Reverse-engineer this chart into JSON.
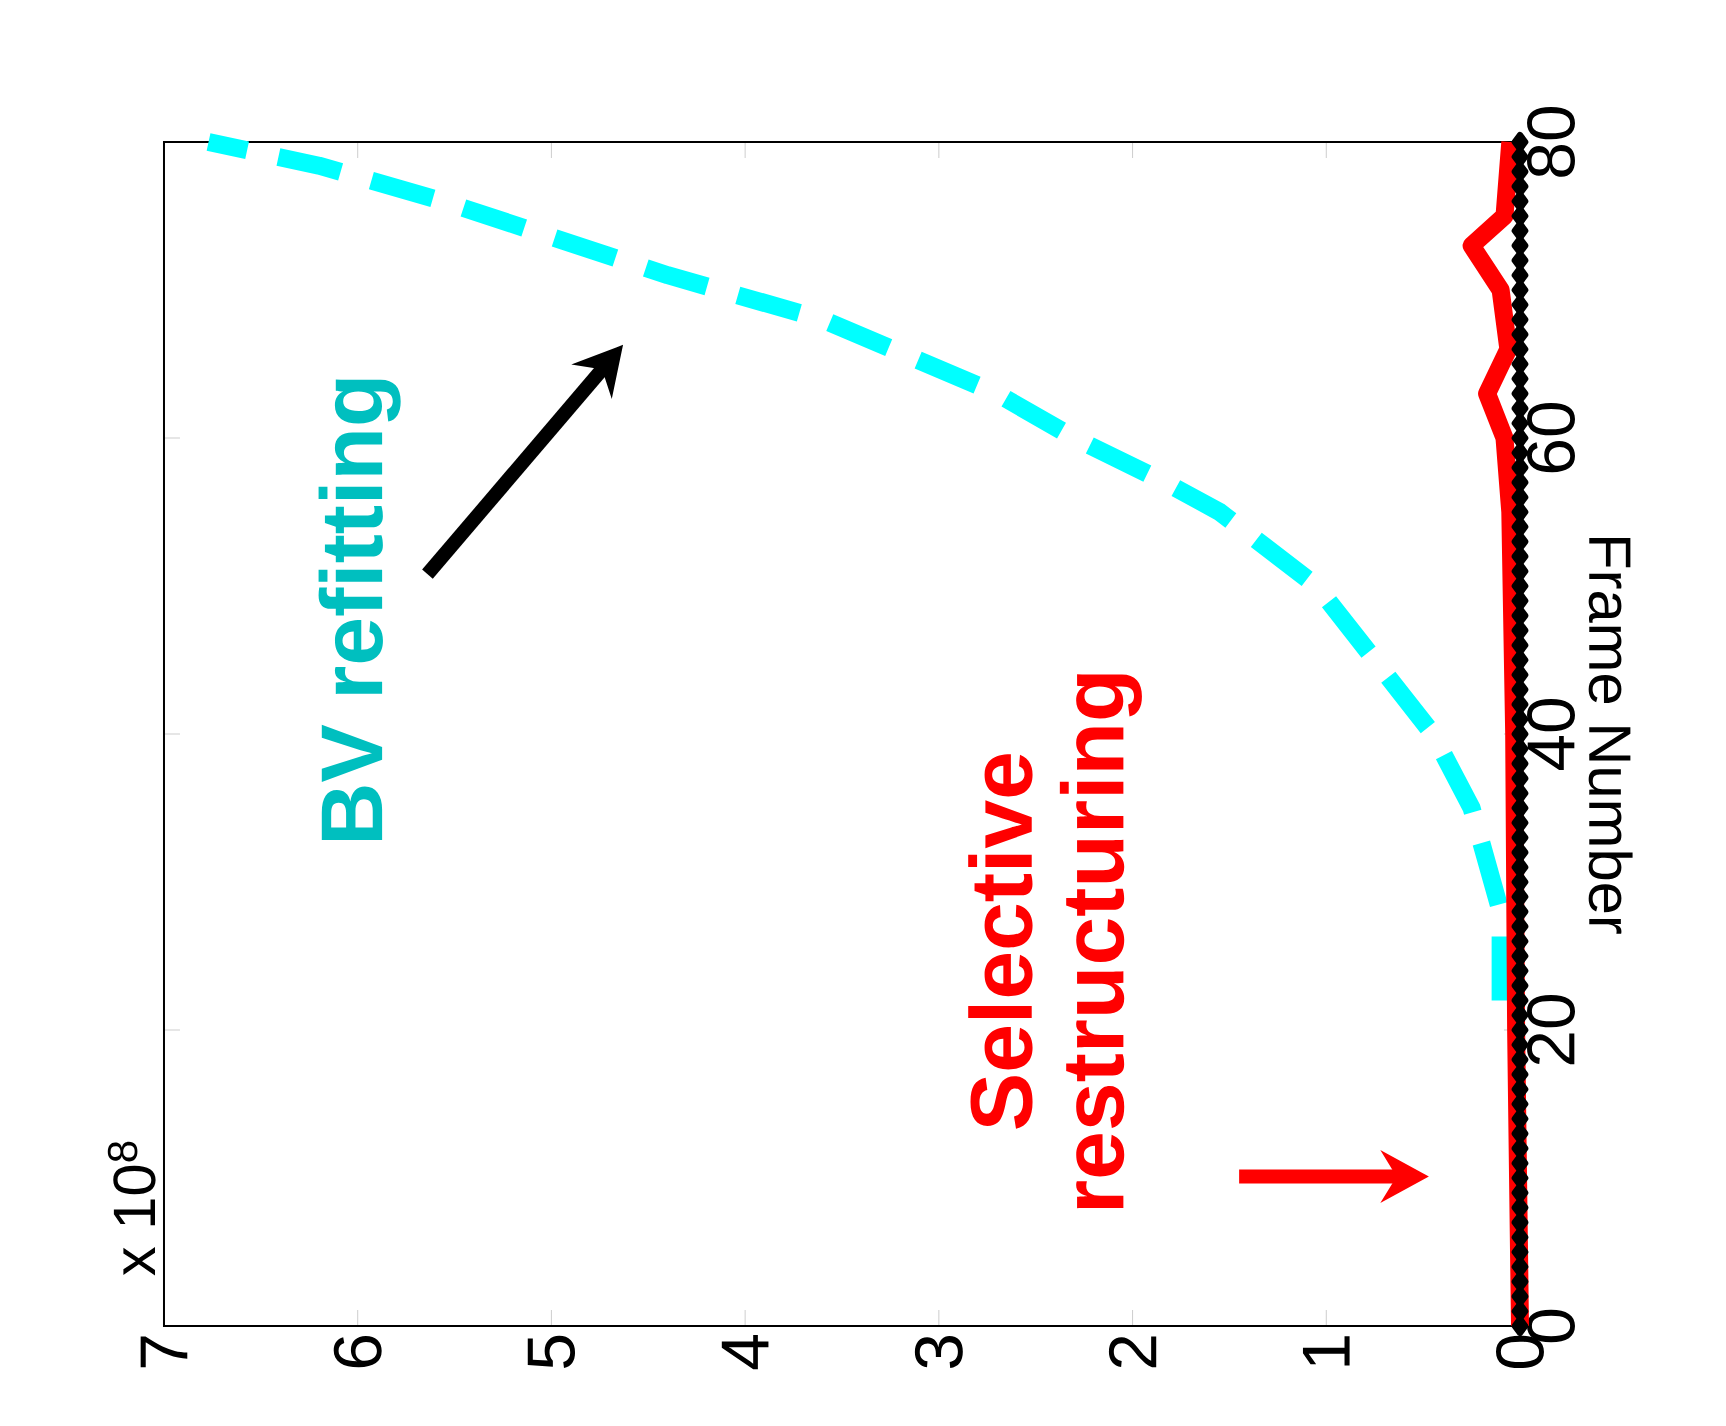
{
  "chart_data": {
    "type": "line",
    "ylabel": "Frame Number",
    "xlim": [
      7,
      0
    ],
    "xticks": [
      7,
      6,
      5,
      4,
      3,
      2,
      1,
      0
    ],
    "ylim": [
      0,
      80
    ],
    "yticks": [
      0,
      20,
      40,
      60,
      80
    ],
    "annotations": [
      "x 10$^{8}$"
    ],
    "series": [
      {
        "name": "BV refitting",
        "color": "#00ffff",
        "line_style": "dashed",
        "values": [
          22,
          28,
          35,
          40,
          45,
          50,
          55,
          57,
          60,
          63,
          65.5,
          68,
          71,
          76,
          78.4,
          80
        ],
        "x": [
          0.1,
          0.1,
          0.25,
          0.45,
          0.75,
          1.05,
          1.55,
          1.83,
          2.3,
          2.7,
          3.15,
          3.6,
          4.4,
          5.56,
          6.2,
          6.77
        ]
      },
      {
        "type": "scatter",
        "color": "#000000",
        "marker": "diamond",
        "values": [
          0,
          1,
          2,
          3,
          4,
          5,
          6,
          7,
          8,
          9,
          10,
          11,
          12,
          13,
          14,
          15,
          16,
          17,
          18,
          19,
          20,
          21,
          22,
          23,
          24,
          25,
          26,
          27,
          28,
          29,
          30,
          31,
          32,
          33,
          34,
          35,
          36,
          37,
          38,
          39,
          40,
          41,
          42,
          43,
          44,
          45,
          46,
          47,
          48,
          49,
          50,
          51,
          52,
          53,
          54,
          55,
          56,
          57,
          58,
          59,
          60,
          61,
          62,
          63,
          64,
          65,
          66,
          67,
          68,
          69,
          70,
          71,
          72,
          73,
          74,
          75,
          76,
          77,
          78,
          79,
          80
        ],
        "x": [
          0,
          0,
          0,
          0,
          0,
          0,
          0,
          0,
          0,
          0,
          0,
          0,
          0,
          0,
          0,
          0,
          0,
          0,
          0,
          0,
          0,
          0,
          0,
          0,
          0,
          0,
          0,
          0,
          0,
          0,
          0,
          0,
          0,
          0,
          0,
          0,
          0,
          0,
          0,
          0,
          0,
          0,
          0,
          0,
          0,
          0,
          0,
          0,
          0,
          0,
          0,
          0,
          0,
          0,
          0,
          0,
          0,
          0,
          0,
          0,
          0,
          0,
          0,
          0,
          0,
          0,
          0,
          0,
          0,
          0,
          0,
          0,
          0,
          0,
          0,
          0,
          0,
          0,
          0,
          0,
          0
        ]
      },
      {
        "name": "Selective restructuring",
        "color": "#ff0000",
        "values": [
          0,
          20,
          40,
          55,
          60,
          63,
          66,
          70,
          73,
          75,
          80
        ],
        "x": [
          0,
          0.02,
          0.03,
          0.05,
          0.08,
          0.17,
          0.06,
          0.1,
          0.25,
          0.08,
          0.05
        ]
      }
    ]
  }
}
